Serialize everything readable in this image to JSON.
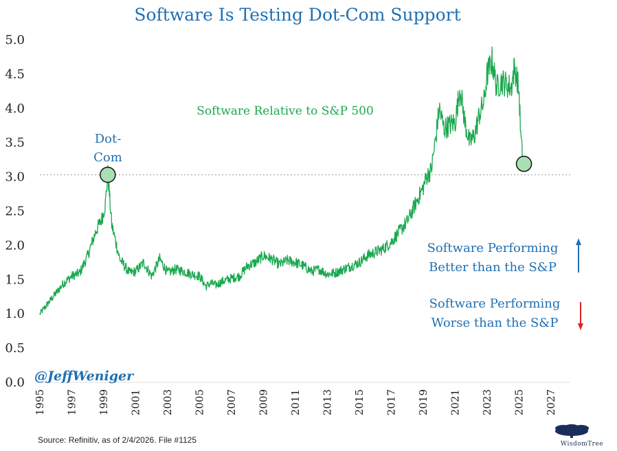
{
  "chart_data": {
    "type": "line",
    "title": "Software Is Testing Dot-Com Support",
    "series": [
      {
        "name": "Software Relative to S&P 500",
        "x": [
          1995.0,
          1995.5,
          1996.0,
          1996.5,
          1997.0,
          1997.5,
          1998.0,
          1998.5,
          1998.9,
          1999.1,
          1999.25,
          1999.5,
          1999.8,
          2000.0,
          2000.3,
          2000.6,
          2001.0,
          2001.5,
          2002.0,
          2002.5,
          2003.0,
          2003.5,
          2004.0,
          2004.5,
          2005.0,
          2005.4,
          2005.7,
          2006.0,
          2006.5,
          2007.0,
          2007.5,
          2008.0,
          2008.5,
          2009.0,
          2009.5,
          2010.0,
          2010.5,
          2011.0,
          2011.5,
          2012.0,
          2012.5,
          2013.0,
          2013.5,
          2014.0,
          2014.5,
          2015.0,
          2015.5,
          2016.0,
          2016.5,
          2017.0,
          2017.5,
          2018.0,
          2018.5,
          2019.0,
          2019.2,
          2019.5,
          2019.8,
          2020.0,
          2020.3,
          2020.6,
          2021.0,
          2021.3,
          2021.6,
          2021.9,
          2022.2,
          2022.5,
          2022.8,
          2023.0,
          2023.3,
          2023.6,
          2023.9,
          2024.2,
          2024.5,
          2024.7,
          2024.9,
          2025.0,
          2025.1,
          2025.2,
          2025.3
        ],
        "values": [
          1.0,
          1.15,
          1.3,
          1.45,
          1.55,
          1.6,
          1.85,
          2.2,
          2.4,
          2.6,
          3.05,
          2.3,
          2.0,
          1.8,
          1.7,
          1.6,
          1.62,
          1.75,
          1.55,
          1.8,
          1.6,
          1.65,
          1.62,
          1.58,
          1.55,
          1.4,
          1.45,
          1.42,
          1.48,
          1.52,
          1.55,
          1.7,
          1.75,
          1.85,
          1.8,
          1.72,
          1.78,
          1.75,
          1.7,
          1.62,
          1.65,
          1.58,
          1.6,
          1.65,
          1.7,
          1.75,
          1.85,
          1.9,
          1.95,
          2.05,
          2.2,
          2.35,
          2.6,
          2.85,
          3.0,
          3.1,
          3.6,
          4.0,
          3.7,
          3.75,
          3.8,
          4.3,
          3.8,
          3.5,
          3.6,
          3.9,
          4.1,
          4.5,
          4.7,
          4.3,
          4.4,
          4.35,
          4.3,
          4.6,
          4.4,
          4.2,
          3.6,
          3.3,
          3.2
        ]
      }
    ],
    "series_label": "Software Relative to S&P 500",
    "ylim": [
      0.0,
      5.0
    ],
    "yticks": [
      "0.0",
      "0.5",
      "1.0",
      "1.5",
      "2.0",
      "2.5",
      "3.0",
      "3.5",
      "4.0",
      "4.5",
      "5.0"
    ],
    "xlim": [
      1995,
      2028.2
    ],
    "xticks": [
      "1995",
      "1997",
      "1999",
      "2001",
      "2003",
      "2005",
      "2007",
      "2009",
      "2011",
      "2013",
      "2015",
      "2017",
      "2019",
      "2021",
      "2023",
      "2025",
      "2027"
    ],
    "reference_line": {
      "y": 3.03,
      "style": "dotted"
    },
    "markers": [
      {
        "x": 1999.25,
        "y": 3.03,
        "label_lines": [
          "Dot-",
          "Com"
        ]
      },
      {
        "x": 2025.3,
        "y": 3.19
      }
    ],
    "grid": false,
    "colors": {
      "line": "#1aa84f",
      "marker_fill": "#a8e0b4",
      "title": "#1f6fb2",
      "up_arrow": "#1f6fb2",
      "down_arrow": "#e02020"
    }
  },
  "annotations": {
    "better_lines": [
      "Software Performing",
      "Better than the S&P"
    ],
    "worse_lines": [
      "Software Performing",
      "Worse than the S&P"
    ],
    "handle": "@JeffWeniger",
    "source": "Source: Refinitiv, as of 2/4/2026. File #1125"
  },
  "logo": {
    "text": "WisdomTree"
  }
}
